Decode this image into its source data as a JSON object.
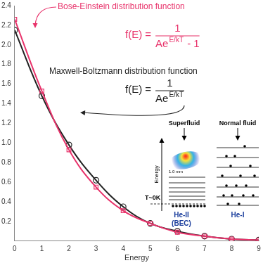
{
  "chart_data": {
    "type": "line",
    "x": [
      0,
      1,
      2,
      3,
      4,
      5,
      6,
      7,
      8,
      9
    ],
    "series": [
      {
        "name": "Bose-Einstein distribution function",
        "color": "#e8336b",
        "marker": "square",
        "formula": {
          "lhs": "f(E) =",
          "numerator": "1",
          "denominator": "Ae",
          "exponent": "E/kT",
          "suffix": "- 1"
        },
        "values": [
          2.26,
          1.53,
          0.93,
          0.55,
          0.31,
          0.18,
          0.09,
          0.05,
          0.02,
          0.01
        ]
      },
      {
        "name": "Maxwell-Boltzmann distribution function",
        "color": "#222222",
        "marker": "circle",
        "formula": {
          "lhs": "f(E) =",
          "numerator": "1",
          "denominator": "Ae",
          "exponent": "E/kT",
          "suffix": ""
        },
        "values": [
          2.15,
          1.48,
          0.98,
          0.62,
          0.35,
          0.18,
          0.1,
          0.05,
          0.02,
          0.01
        ]
      }
    ],
    "x_label": "Energy",
    "xlim": [
      0,
      9
    ],
    "xticks": [
      0,
      1,
      2,
      3,
      4,
      5,
      6,
      7,
      8,
      9
    ],
    "ylim": [
      0,
      2.4
    ],
    "yticks": [
      0.2,
      0.4,
      0.6,
      0.8,
      {
        "value": 1,
        "label": "1.0"
      },
      1.2,
      1.4,
      1.6,
      1.8,
      {
        "value": 2,
        "label": "2.0"
      },
      2.2,
      2.4
    ],
    "grid": false,
    "inset": {
      "superfluid_label": "Superfluid",
      "normal_label": "Normal fluid",
      "axis_label": "Energy",
      "temperature_label": "T~0K",
      "scale_label": "1.0 mm",
      "left_phase": "He-II",
      "left_phase_note": "(BEC)",
      "right_phase": "He-I"
    }
  }
}
